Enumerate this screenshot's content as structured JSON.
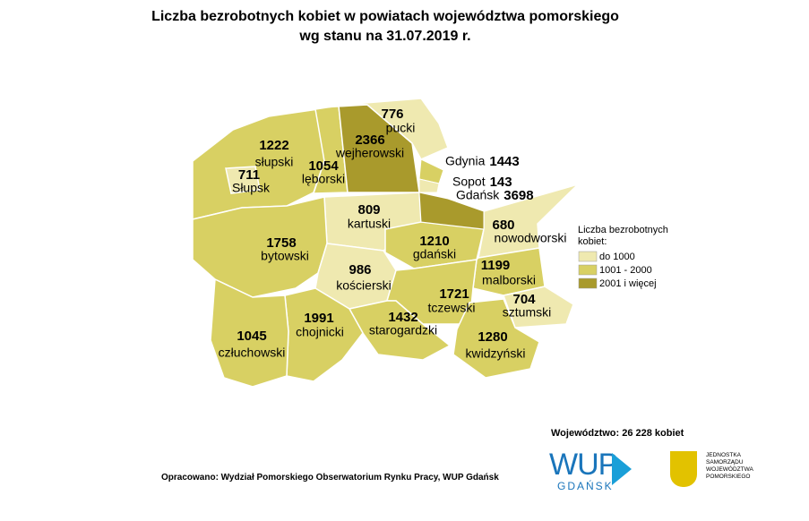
{
  "title": "Liczba bezrobotnych kobiet w powiatach województwa pomorskiego",
  "subtitle": "wg stanu na 31.07.2019 r.",
  "regions": [
    {
      "name": "słupski",
      "value": 1222,
      "color": "#d8d063"
    },
    {
      "name": "Słupsk",
      "value": 711,
      "color": "#efe9b0"
    },
    {
      "name": "lęborski",
      "value": 1054,
      "color": "#d8d063"
    },
    {
      "name": "wejherowski",
      "value": 2366,
      "color": "#a99a2c"
    },
    {
      "name": "pucki",
      "value": 776,
      "color": "#efe9b0"
    },
    {
      "name": "kartuski",
      "value": 809,
      "color": "#efe9b0"
    },
    {
      "name": "gdański",
      "value": 1210,
      "color": "#d8d063"
    },
    {
      "name": "nowodworski",
      "value": 680,
      "color": "#efe9b0"
    },
    {
      "name": "bytowski",
      "value": 1758,
      "color": "#d8d063"
    },
    {
      "name": "kościerski",
      "value": 986,
      "color": "#efe9b0"
    },
    {
      "name": "malborski",
      "value": 1199,
      "color": "#d8d063"
    },
    {
      "name": "sztumski",
      "value": 704,
      "color": "#efe9b0"
    },
    {
      "name": "tczewski",
      "value": 1721,
      "color": "#d8d063"
    },
    {
      "name": "starogardzki",
      "value": 1432,
      "color": "#d8d063"
    },
    {
      "name": "kwidzyński",
      "value": 1280,
      "color": "#d8d063"
    },
    {
      "name": "chojnicki",
      "value": 1991,
      "color": "#d8d063"
    },
    {
      "name": "człuchowski",
      "value": 1045,
      "color": "#d8d063"
    }
  ],
  "cities": [
    {
      "name": "Gdynia",
      "value": 1443,
      "color": "#d8d063"
    },
    {
      "name": "Sopot",
      "value": 143,
      "color": "#efe9b0"
    },
    {
      "name": "Gdańsk",
      "value": 3698,
      "color": "#a99a2c"
    }
  ],
  "legend": {
    "title": "Liczba bezrobotnych kobiet:",
    "items": [
      {
        "label": "do 1000",
        "color": "#efe9b0"
      },
      {
        "label": "1001 - 2000",
        "color": "#d8d063"
      },
      {
        "label": "2001 i więcej",
        "color": "#a99a2c"
      }
    ]
  },
  "total": "Województwo: 26 228 kobiet",
  "source": "Opracowano: Wydział Pomorskiego Obserwatorium Rynku Pracy, WUP Gdańsk",
  "logo_wup": {
    "main": "WUP",
    "sub": "GDAŃSK"
  },
  "logo_region": [
    "JEDNOSTKA",
    "SAMORZĄDU",
    "WOJEWÓDZTWA",
    "POMORSKIEGO"
  ]
}
